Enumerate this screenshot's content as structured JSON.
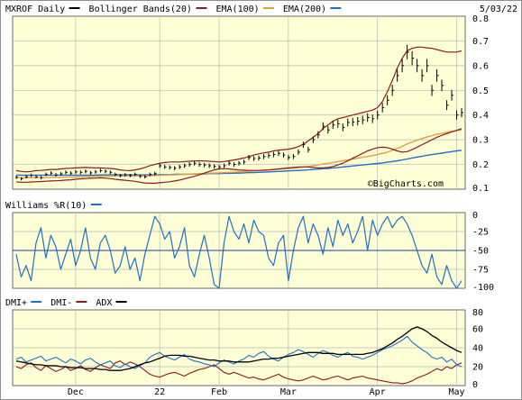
{
  "chart_data": [
    {
      "type": "line",
      "panel": "price",
      "title": "MXROF Daily",
      "date": "5/03/22",
      "legend": [
        {
          "label": "MXROF Daily",
          "color": "#000000"
        },
        {
          "label": "Bollinger Bands(20)",
          "color": "#8b1a1a"
        },
        {
          "label": "EMA(100)",
          "color": "#e0a040"
        },
        {
          "label": "EMA(200)",
          "color": "#1f6fd0"
        }
      ],
      "watermark": "©BigCharts.com",
      "ylim": [
        0.1,
        0.8
      ],
      "y_ticks": [
        "0.8",
        "0.7",
        "0.6",
        "0.5",
        "0.4",
        "0.3",
        "0.2",
        "0.1"
      ],
      "grid": true,
      "series": [
        {
          "name": "MXROF Daily",
          "values": [
            0.148,
            0.142,
            0.15,
            0.156,
            0.15,
            0.147,
            0.16,
            0.165,
            0.158,
            0.162,
            0.168,
            0.165,
            0.17,
            0.168,
            0.172,
            0.166,
            0.17,
            0.175,
            0.172,
            0.168,
            0.16,
            0.155,
            0.158,
            0.155,
            0.16,
            0.152,
            0.15,
            0.16,
            0.163,
            0.195,
            0.19,
            0.188,
            0.185,
            0.19,
            0.195,
            0.2,
            0.205,
            0.2,
            0.198,
            0.195,
            0.192,
            0.19,
            0.195,
            0.205,
            0.2,
            0.205,
            0.21,
            0.228,
            0.224,
            0.226,
            0.232,
            0.236,
            0.24,
            0.245,
            0.238,
            0.228,
            0.232,
            0.25,
            0.28,
            0.26,
            0.3,
            0.32,
            0.355,
            0.34,
            0.36,
            0.365,
            0.35,
            0.37,
            0.372,
            0.375,
            0.38,
            0.39,
            0.385,
            0.4,
            0.43,
            0.46,
            0.5,
            0.56,
            0.6,
            0.655,
            0.63,
            0.6,
            0.56,
            0.6,
            0.5,
            0.56,
            0.52,
            0.44,
            0.48,
            0.4,
            0.41
          ]
        },
        {
          "name": "Bollinger Upper",
          "values": [
            0.175,
            0.172,
            0.17,
            0.172,
            0.175,
            0.176,
            0.178,
            0.18,
            0.18,
            0.182,
            0.184,
            0.185,
            0.186,
            0.187,
            0.188,
            0.187,
            0.186,
            0.186,
            0.185,
            0.184,
            0.182,
            0.178,
            0.176,
            0.175,
            0.178,
            0.182,
            0.188,
            0.195,
            0.2,
            0.205,
            0.208,
            0.21,
            0.21,
            0.21,
            0.212,
            0.213,
            0.214,
            0.215,
            0.214,
            0.213,
            0.212,
            0.21,
            0.212,
            0.215,
            0.218,
            0.222,
            0.226,
            0.232,
            0.238,
            0.243,
            0.247,
            0.25,
            0.255,
            0.258,
            0.26,
            0.262,
            0.266,
            0.272,
            0.282,
            0.295,
            0.31,
            0.325,
            0.345,
            0.36,
            0.375,
            0.385,
            0.39,
            0.395,
            0.4,
            0.405,
            0.41,
            0.415,
            0.42,
            0.43,
            0.455,
            0.495,
            0.54,
            0.59,
            0.63,
            0.66,
            0.67,
            0.675,
            0.675,
            0.672,
            0.67,
            0.665,
            0.66,
            0.655,
            0.655,
            0.655,
            0.66
          ]
        },
        {
          "name": "Bollinger Lower",
          "values": [
            0.13,
            0.128,
            0.128,
            0.129,
            0.13,
            0.131,
            0.132,
            0.133,
            0.134,
            0.135,
            0.137,
            0.138,
            0.14,
            0.142,
            0.143,
            0.144,
            0.145,
            0.146,
            0.145,
            0.143,
            0.14,
            0.138,
            0.136,
            0.134,
            0.132,
            0.128,
            0.125,
            0.124,
            0.124,
            0.126,
            0.128,
            0.13,
            0.133,
            0.137,
            0.142,
            0.147,
            0.152,
            0.158,
            0.165,
            0.172,
            0.178,
            0.182,
            0.183,
            0.182,
            0.18,
            0.178,
            0.177,
            0.176,
            0.176,
            0.176,
            0.177,
            0.178,
            0.18,
            0.182,
            0.184,
            0.186,
            0.188,
            0.19,
            0.19,
            0.19,
            0.188,
            0.186,
            0.186,
            0.188,
            0.192,
            0.198,
            0.205,
            0.215,
            0.225,
            0.235,
            0.245,
            0.255,
            0.262,
            0.268,
            0.27,
            0.268,
            0.262,
            0.255,
            0.25,
            0.252,
            0.26,
            0.27,
            0.28,
            0.29,
            0.3,
            0.31,
            0.318,
            0.325,
            0.332,
            0.338,
            0.345
          ]
        },
        {
          "name": "EMA(100)",
          "values": [
            0.147,
            0.147,
            0.147,
            0.147,
            0.147,
            0.147,
            0.147,
            0.148,
            0.148,
            0.148,
            0.149,
            0.149,
            0.15,
            0.15,
            0.151,
            0.151,
            0.152,
            0.152,
            0.153,
            0.153,
            0.154,
            0.154,
            0.154,
            0.154,
            0.154,
            0.154,
            0.154,
            0.154,
            0.155,
            0.156,
            0.157,
            0.158,
            0.158,
            0.159,
            0.16,
            0.161,
            0.162,
            0.163,
            0.164,
            0.165,
            0.165,
            0.166,
            0.167,
            0.168,
            0.169,
            0.17,
            0.171,
            0.173,
            0.174,
            0.175,
            0.177,
            0.178,
            0.18,
            0.181,
            0.183,
            0.184,
            0.185,
            0.187,
            0.19,
            0.192,
            0.195,
            0.198,
            0.202,
            0.205,
            0.208,
            0.212,
            0.215,
            0.218,
            0.222,
            0.225,
            0.229,
            0.232,
            0.236,
            0.24,
            0.245,
            0.25,
            0.257,
            0.265,
            0.273,
            0.283,
            0.291,
            0.298,
            0.305,
            0.311,
            0.317,
            0.322,
            0.326,
            0.33,
            0.334,
            0.337,
            0.34
          ]
        },
        {
          "name": "EMA(200)",
          "values": [
            0.157,
            0.157,
            0.157,
            0.157,
            0.157,
            0.157,
            0.157,
            0.157,
            0.157,
            0.157,
            0.157,
            0.157,
            0.157,
            0.157,
            0.157,
            0.157,
            0.157,
            0.158,
            0.158,
            0.158,
            0.158,
            0.158,
            0.158,
            0.158,
            0.158,
            0.158,
            0.158,
            0.158,
            0.158,
            0.159,
            0.159,
            0.159,
            0.16,
            0.16,
            0.16,
            0.161,
            0.161,
            0.162,
            0.162,
            0.163,
            0.163,
            0.163,
            0.164,
            0.164,
            0.165,
            0.165,
            0.166,
            0.167,
            0.167,
            0.168,
            0.169,
            0.17,
            0.171,
            0.172,
            0.173,
            0.174,
            0.175,
            0.176,
            0.177,
            0.178,
            0.18,
            0.181,
            0.183,
            0.184,
            0.186,
            0.188,
            0.19,
            0.192,
            0.194,
            0.196,
            0.198,
            0.2,
            0.202,
            0.204,
            0.206,
            0.209,
            0.212,
            0.215,
            0.218,
            0.222,
            0.226,
            0.23,
            0.233,
            0.237,
            0.24,
            0.243,
            0.246,
            0.249,
            0.252,
            0.255,
            0.257
          ]
        }
      ]
    },
    {
      "type": "line",
      "panel": "williams",
      "legend": [
        {
          "label": "Williams %R(10)",
          "color": "#1f6fd0"
        }
      ],
      "ylim": [
        -100,
        0
      ],
      "y_ticks": [
        "0",
        "-25",
        "-50",
        "-75",
        "-100"
      ],
      "reference_line": -50,
      "grid": true,
      "series": [
        {
          "name": "Williams %R(10)",
          "values": [
            -55,
            -85,
            -70,
            -90,
            -40,
            -20,
            -60,
            -30,
            -45,
            -75,
            -55,
            -35,
            -70,
            -50,
            -20,
            -60,
            -75,
            -40,
            -30,
            -50,
            -80,
            -70,
            -45,
            -75,
            -60,
            -90,
            -55,
            -30,
            -5,
            -15,
            -35,
            -25,
            -60,
            -45,
            -20,
            -70,
            -85,
            -55,
            -30,
            -60,
            -95,
            -100,
            -40,
            -5,
            -25,
            -35,
            -15,
            -40,
            -10,
            -25,
            -30,
            -60,
            -70,
            -40,
            -30,
            -90,
            -50,
            -20,
            -5,
            -40,
            -15,
            -30,
            -55,
            -20,
            -45,
            -10,
            -30,
            -15,
            -40,
            -25,
            -5,
            -50,
            -10,
            -30,
            -15,
            -5,
            -20,
            -10,
            -5,
            -15,
            -30,
            -50,
            -70,
            -80,
            -55,
            -85,
            -95,
            -70,
            -90,
            -100,
            -90
          ]
        }
      ]
    },
    {
      "type": "line",
      "panel": "dmi",
      "legend": [
        {
          "label": "DMI+",
          "color": "#1f6fd0"
        },
        {
          "label": "DMI-",
          "color": "#8b1a1a"
        },
        {
          "label": "ADX",
          "color": "#000000"
        }
      ],
      "ylim": [
        0,
        80
      ],
      "y_ticks": [
        "80",
        "60",
        "40",
        "20",
        "0"
      ],
      "grid": true,
      "x_ticks": [
        {
          "label": "Dec",
          "index": 12
        },
        {
          "label": "22",
          "index": 29
        },
        {
          "label": "Feb",
          "index": 41
        },
        {
          "label": "Mar",
          "index": 55
        },
        {
          "label": "Apr",
          "index": 73
        },
        {
          "label": "May",
          "index": 89
        }
      ],
      "series": [
        {
          "name": "DMI+",
          "values": [
            28,
            30,
            25,
            27,
            29,
            31,
            26,
            28,
            30,
            27,
            24,
            28,
            26,
            23,
            27,
            29,
            25,
            22,
            24,
            26,
            21,
            19,
            23,
            20,
            18,
            21,
            24,
            30,
            33,
            35,
            31,
            29,
            27,
            30,
            33,
            28,
            26,
            25,
            23,
            22,
            20,
            24,
            27,
            25,
            23,
            26,
            28,
            32,
            30,
            34,
            36,
            31,
            28,
            26,
            30,
            33,
            35,
            38,
            36,
            33,
            30,
            34,
            37,
            35,
            32,
            30,
            33,
            35,
            31,
            30,
            28,
            30,
            32,
            35,
            38,
            40,
            42,
            45,
            48,
            52,
            46,
            42,
            38,
            35,
            30,
            28,
            30,
            25,
            28,
            22,
            20
          ]
        },
        {
          "name": "DMI-",
          "values": [
            20,
            18,
            22,
            24,
            19,
            16,
            21,
            18,
            15,
            17,
            20,
            16,
            18,
            21,
            17,
            15,
            19,
            22,
            20,
            18,
            24,
            26,
            22,
            25,
            23,
            20,
            16,
            12,
            10,
            9,
            11,
            13,
            14,
            12,
            10,
            13,
            15,
            17,
            18,
            20,
            22,
            18,
            14,
            12,
            14,
            12,
            10,
            8,
            9,
            7,
            6,
            8,
            10,
            12,
            9,
            7,
            6,
            5,
            6,
            8,
            10,
            8,
            6,
            7,
            9,
            10,
            8,
            6,
            8,
            9,
            10,
            8,
            7,
            6,
            5,
            4,
            3,
            3,
            2,
            3,
            5,
            8,
            10,
            12,
            15,
            18,
            16,
            20,
            18,
            22,
            24
          ]
        },
        {
          "name": "ADX",
          "values": [
            26,
            25,
            24,
            23,
            22,
            22,
            21,
            21,
            21,
            20,
            20,
            19,
            19,
            19,
            18,
            18,
            18,
            17,
            17,
            16,
            16,
            16,
            17,
            18,
            20,
            22,
            24,
            25,
            27,
            29,
            31,
            32,
            32,
            32,
            31,
            31,
            30,
            29,
            28,
            27,
            27,
            26,
            26,
            26,
            25,
            25,
            25,
            25,
            26,
            27,
            28,
            28,
            29,
            29,
            30,
            31,
            32,
            33,
            34,
            35,
            35,
            35,
            34,
            34,
            34,
            33,
            33,
            33,
            33,
            33,
            33,
            34,
            35,
            37,
            39,
            42,
            45,
            49,
            52,
            56,
            60,
            62,
            60,
            57,
            53,
            50,
            46,
            43,
            40,
            37,
            35
          ]
        }
      ]
    }
  ]
}
